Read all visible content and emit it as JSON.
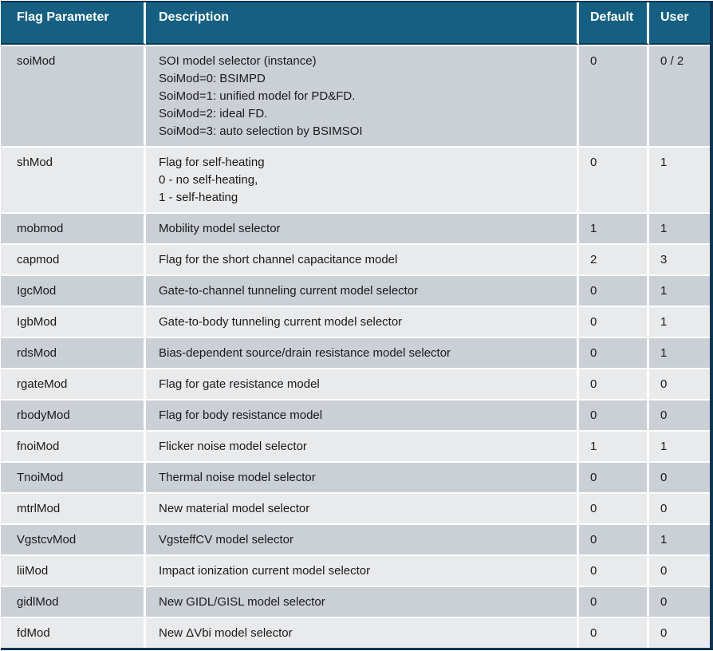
{
  "colors": {
    "header_bg": "#156082",
    "header_text": "#ffffff",
    "row_dark": "#cbcfd6",
    "row_light": "#e9eaec",
    "outline": "#0f3553",
    "text": "#1a1a1a"
  },
  "table": {
    "columns": [
      "Flag Parameter",
      "Description",
      "Default",
      "User"
    ],
    "rows": [
      {
        "param": "soiMod",
        "description": "SOI model selector (instance)\nSoiMod=0: BSIMPD\nSoiMod=1: unified model for PD&FD.\nSoiMod=2: ideal FD.\nSoiMod=3: auto selection by BSIMSOI",
        "default": "0",
        "user": "0 / 2"
      },
      {
        "param": "shMod",
        "description": "Flag for self-heating\n0 - no self-heating,\n1 - self-heating",
        "default": "0",
        "user": "1"
      },
      {
        "param": "mobmod",
        "description": "Mobility model selector",
        "default": "1",
        "user": "1"
      },
      {
        "param": "capmod",
        "description": "Flag for the short channel capacitance model",
        "default": "2",
        "user": "3"
      },
      {
        "param": "IgcMod",
        "description": "Gate-to-channel tunneling current model selector",
        "default": "0",
        "user": "1"
      },
      {
        "param": "IgbMod",
        "description": "Gate-to-body tunneling current model selector",
        "default": "0",
        "user": "1"
      },
      {
        "param": "rdsMod",
        "description": "Bias-dependent source/drain resistance model selector",
        "default": "0",
        "user": "1"
      },
      {
        "param": "rgateMod",
        "description": "Flag for gate resistance model",
        "default": "0",
        "user": "0"
      },
      {
        "param": "rbodyMod",
        "description": "Flag for body resistance model",
        "default": "0",
        "user": "0"
      },
      {
        "param": "fnoiMod",
        "description": "Flicker noise model selector",
        "default": "1",
        "user": "1"
      },
      {
        "param": "TnoiMod",
        "description": "Thermal noise model selector",
        "default": "0",
        "user": "0"
      },
      {
        "param": "mtrlMod",
        "description": "New material model selector",
        "default": "0",
        "user": "0"
      },
      {
        "param": "VgstcvMod",
        "description": "VgsteffCV model selector",
        "default": "0",
        "user": "1"
      },
      {
        "param": "liiMod",
        "description": "Impact ionization current model selector",
        "default": "0",
        "user": "0"
      },
      {
        "param": "gidlMod",
        "description": "New GIDL/GISL model selector",
        "default": "0",
        "user": "0"
      },
      {
        "param": "fdMod",
        "description": "New ΔVbi model selector",
        "default": "0",
        "user": "0"
      }
    ]
  }
}
